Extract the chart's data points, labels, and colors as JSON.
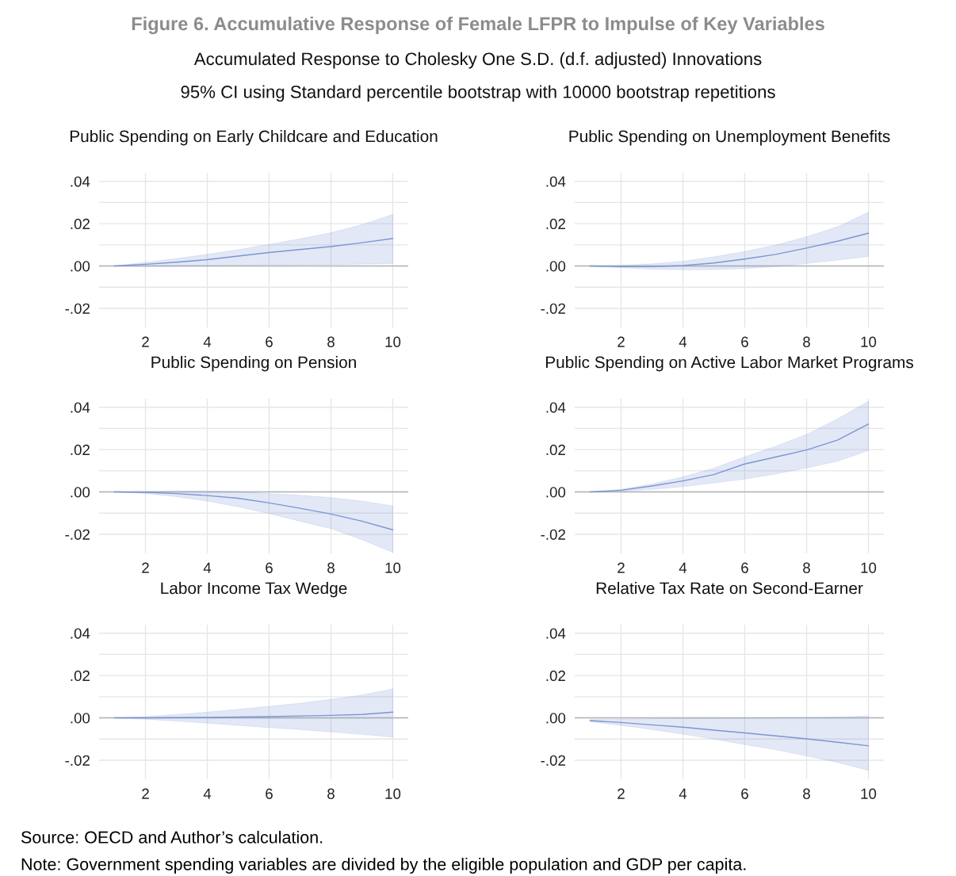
{
  "chart_data": [
    {
      "type": "other",
      "title": "Figure 6. Accumulative Response of Female LFPR to Impulse of Key Variables",
      "subtitle": "Accumulated Response to Cholesky One S.D. (d.f. adjusted) Innovations\n95% CI using Standard percentile bootstrap with 10000 bootstrap repetitions",
      "annotations": [
        "Source: OECD and Author’s calculation.",
        "Note: Government spending variables are divided by the eligible population and GDP per capita."
      ]
    },
    {
      "type": "line",
      "title": "Public Spending on Early Childcare and Education",
      "x": [
        1,
        2,
        3,
        4,
        5,
        6,
        7,
        8,
        9,
        10
      ],
      "series": [
        {
          "color": "#7b96d4",
          "values": [
            0,
            0.0008,
            0.0018,
            0.003,
            0.0047,
            0.0064,
            0.0078,
            0.0092,
            0.011,
            0.013
          ],
          "upper": [
            0,
            0.0017,
            0.0035,
            0.0055,
            0.0077,
            0.0102,
            0.0128,
            0.0157,
            0.0195,
            0.0243
          ],
          "lower": [
            0,
            -0.0002,
            -0.0001,
            0,
            0.0003,
            0.0005,
            0.0006,
            0.0007,
            0.0009,
            0.0011
          ]
        }
      ],
      "xlim": [
        0.5,
        10.5
      ],
      "ylim": [
        -0.029,
        0.044
      ],
      "xticks": [
        2,
        4,
        6,
        8,
        10
      ],
      "yticks": [
        {
          "value": -0.02,
          "label": "-.02"
        },
        {
          "value": -0.01,
          "label": null
        },
        {
          "value": 0,
          "label": ".00"
        },
        {
          "value": 0.01,
          "label": null
        },
        {
          "value": 0.02,
          "label": ".02"
        },
        {
          "value": 0.03,
          "label": null
        },
        {
          "value": 0.04,
          "label": ".04"
        }
      ],
      "grid": true,
      "ref_lines": [
        {
          "axis": "y",
          "value": 0,
          "color": "#b4b4b4"
        }
      ]
    },
    {
      "type": "line",
      "title": "Public Spending on Unemployment Benefits",
      "x": [
        1,
        2,
        3,
        4,
        5,
        6,
        7,
        8,
        9,
        10
      ],
      "series": [
        {
          "color": "#7b96d4",
          "values": [
            0,
            -0.0003,
            -0.0003,
            0.0002,
            0.0014,
            0.0033,
            0.0055,
            0.0085,
            0.0117,
            0.0155
          ],
          "upper": [
            0,
            0.0003,
            0.001,
            0.0022,
            0.0043,
            0.0068,
            0.0099,
            0.0138,
            0.0185,
            0.0254
          ],
          "lower": [
            0,
            -0.0008,
            -0.0015,
            -0.0018,
            -0.0017,
            -0.0012,
            -0.0003,
            0.0012,
            0.0028,
            0.0045
          ]
        }
      ],
      "xlim": [
        0.5,
        10.5
      ],
      "ylim": [
        -0.029,
        0.044
      ],
      "xticks": [
        2,
        4,
        6,
        8,
        10
      ],
      "yticks": [
        {
          "value": -0.02,
          "label": "-.02"
        },
        {
          "value": -0.01,
          "label": null
        },
        {
          "value": 0,
          "label": ".00"
        },
        {
          "value": 0.01,
          "label": null
        },
        {
          "value": 0.02,
          "label": ".02"
        },
        {
          "value": 0.03,
          "label": null
        },
        {
          "value": 0.04,
          "label": ".04"
        }
      ],
      "grid": true,
      "ref_lines": [
        {
          "axis": "y",
          "value": 0,
          "color": "#b4b4b4"
        }
      ]
    },
    {
      "type": "line",
      "title": "Public Spending on Pension",
      "x": [
        1,
        2,
        3,
        4,
        5,
        6,
        7,
        8,
        9,
        10
      ],
      "series": [
        {
          "color": "#7b96d4",
          "values": [
            0,
            -0.0002,
            -0.0008,
            -0.0017,
            -0.003,
            -0.0052,
            -0.0077,
            -0.0104,
            -0.0138,
            -0.0179
          ],
          "upper": [
            0,
            0.0002,
            0.0004,
            0.0004,
            0.0002,
            -0.0008,
            -0.0016,
            -0.0027,
            -0.0043,
            -0.0066
          ],
          "lower": [
            0,
            -0.0007,
            -0.0022,
            -0.0043,
            -0.007,
            -0.0102,
            -0.0138,
            -0.0173,
            -0.0225,
            -0.0285
          ]
        }
      ],
      "xlim": [
        0.5,
        10.5
      ],
      "ylim": [
        -0.029,
        0.044
      ],
      "xticks": [
        2,
        4,
        6,
        8,
        10
      ],
      "yticks": [
        {
          "value": -0.02,
          "label": "-.02"
        },
        {
          "value": -0.01,
          "label": null
        },
        {
          "value": 0,
          "label": ".00"
        },
        {
          "value": 0.01,
          "label": null
        },
        {
          "value": 0.02,
          "label": ".02"
        },
        {
          "value": 0.03,
          "label": null
        },
        {
          "value": 0.04,
          "label": ".04"
        }
      ],
      "grid": true,
      "ref_lines": [
        {
          "axis": "y",
          "value": 0,
          "color": "#b4b4b4"
        }
      ]
    },
    {
      "type": "line",
      "title": "Public Spending on Active Labor Market Programs",
      "x": [
        1,
        2,
        3,
        4,
        5,
        6,
        7,
        8,
        9,
        10
      ],
      "series": [
        {
          "color": "#7b96d4",
          "values": [
            0,
            0.0008,
            0.0028,
            0.0052,
            0.0082,
            0.0132,
            0.0165,
            0.0198,
            0.0245,
            0.032
          ],
          "upper": [
            0,
            0.0012,
            0.0038,
            0.0071,
            0.0112,
            0.0166,
            0.0215,
            0.0272,
            0.0345,
            0.0428
          ],
          "lower": [
            0,
            0.0003,
            0.0012,
            0.0025,
            0.0042,
            0.0061,
            0.0085,
            0.0113,
            0.0145,
            0.0196
          ]
        }
      ],
      "xlim": [
        0.5,
        10.5
      ],
      "ylim": [
        -0.029,
        0.044
      ],
      "xticks": [
        2,
        4,
        6,
        8,
        10
      ],
      "yticks": [
        {
          "value": -0.02,
          "label": "-.02"
        },
        {
          "value": -0.01,
          "label": null
        },
        {
          "value": 0,
          "label": ".00"
        },
        {
          "value": 0.01,
          "label": null
        },
        {
          "value": 0.02,
          "label": ".02"
        },
        {
          "value": 0.03,
          "label": null
        },
        {
          "value": 0.04,
          "label": ".04"
        }
      ],
      "grid": true,
      "ref_lines": [
        {
          "axis": "y",
          "value": 0,
          "color": "#b4b4b4"
        }
      ]
    },
    {
      "type": "line",
      "title": "Labor Income Tax Wedge",
      "x": [
        1,
        2,
        3,
        4,
        5,
        6,
        7,
        8,
        9,
        10
      ],
      "series": [
        {
          "color": "#7b96d4",
          "values": [
            0,
            0,
            0.0001,
            0.0002,
            0.0004,
            0.0006,
            0.0009,
            0.0012,
            0.0016,
            0.0027
          ],
          "upper": [
            0,
            0.0006,
            0.0016,
            0.0027,
            0.004,
            0.0054,
            0.0069,
            0.0087,
            0.0108,
            0.0137
          ],
          "lower": [
            0,
            -0.0006,
            -0.0015,
            -0.0025,
            -0.0035,
            -0.0046,
            -0.0055,
            -0.0066,
            -0.0078,
            -0.0091
          ]
        }
      ],
      "xlim": [
        0.5,
        10.5
      ],
      "ylim": [
        -0.029,
        0.044
      ],
      "xticks": [
        2,
        4,
        6,
        8,
        10
      ],
      "yticks": [
        {
          "value": -0.02,
          "label": "-.02"
        },
        {
          "value": -0.01,
          "label": null
        },
        {
          "value": 0,
          "label": ".00"
        },
        {
          "value": 0.01,
          "label": null
        },
        {
          "value": 0.02,
          "label": ".02"
        },
        {
          "value": 0.03,
          "label": null
        },
        {
          "value": 0.04,
          "label": ".04"
        }
      ],
      "grid": true,
      "ref_lines": [
        {
          "axis": "y",
          "value": 0,
          "color": "#b4b4b4"
        }
      ]
    },
    {
      "type": "line",
      "title": "Relative Tax Rate on Second-Earner",
      "x": [
        1,
        2,
        3,
        4,
        5,
        6,
        7,
        8,
        9,
        10
      ],
      "series": [
        {
          "color": "#7b96d4",
          "values": [
            -0.0013,
            -0.0022,
            -0.0033,
            -0.0044,
            -0.0058,
            -0.0071,
            -0.0085,
            -0.0099,
            -0.0115,
            -0.0132
          ],
          "upper": [
            -0.0008,
            -0.0006,
            -0.0004,
            -0.0003,
            -0.0002,
            -0.0001,
            0,
            0.0002,
            0.0004,
            0.0009
          ],
          "lower": [
            -0.0018,
            -0.0035,
            -0.0055,
            -0.0077,
            -0.01,
            -0.0126,
            -0.015,
            -0.018,
            -0.021,
            -0.0248
          ]
        }
      ],
      "xlim": [
        0.5,
        10.5
      ],
      "ylim": [
        -0.029,
        0.044
      ],
      "xticks": [
        2,
        4,
        6,
        8,
        10
      ],
      "yticks": [
        {
          "value": -0.02,
          "label": "-.02"
        },
        {
          "value": -0.01,
          "label": null
        },
        {
          "value": 0,
          "label": ".00"
        },
        {
          "value": 0.01,
          "label": null
        },
        {
          "value": 0.02,
          "label": ".02"
        },
        {
          "value": 0.03,
          "label": null
        },
        {
          "value": 0.04,
          "label": ".04"
        }
      ],
      "grid": true,
      "ref_lines": [
        {
          "axis": "y",
          "value": 0,
          "color": "#b4b4b4"
        }
      ]
    }
  ]
}
